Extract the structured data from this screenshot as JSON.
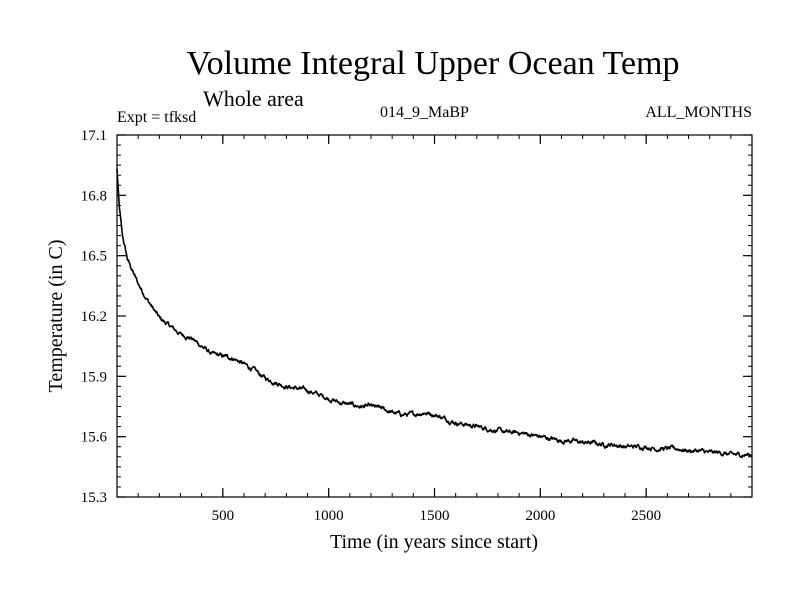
{
  "chart_data": {
    "type": "line",
    "title": "Volume Integral Upper Ocean Temp",
    "subtitle": "Whole area",
    "experiment_label": "Expt = tfksd",
    "run_label": "014_9_MaBP",
    "months_label": "ALL_MONTHS",
    "xlabel": "Time (in years since start)",
    "ylabel": "Temperature (in C)",
    "xlim": [
      0,
      3000
    ],
    "ylim": [
      15.3,
      17.1
    ],
    "xticks": [
      500,
      1000,
      1500,
      2000,
      2500
    ],
    "yticks": [
      15.3,
      15.6,
      15.9,
      16.2,
      16.5,
      16.8,
      17.1
    ],
    "ytick_labels": [
      "15.3",
      "15.6",
      "15.9",
      "16.2",
      "16.5",
      "16.8",
      "17.1"
    ],
    "grid": false,
    "series": [
      {
        "name": "Volume Integral Upper Ocean Temp",
        "color": "#000000",
        "x": [
          0,
          10,
          25,
          50,
          100,
          150,
          200,
          250,
          300,
          350,
          400,
          450,
          500,
          550,
          600,
          650,
          700,
          750,
          800,
          850,
          900,
          950,
          1000,
          1050,
          1100,
          1150,
          1200,
          1250,
          1300,
          1350,
          1400,
          1450,
          1500,
          1550,
          1600,
          1650,
          1700,
          1750,
          1800,
          1850,
          1900,
          1950,
          2000,
          2050,
          2100,
          2150,
          2200,
          2250,
          2300,
          2350,
          2400,
          2450,
          2500,
          2550,
          2600,
          2650,
          2700,
          2750,
          2800,
          2850,
          2900,
          2950,
          3000
        ],
        "y": [
          16.93,
          16.75,
          16.6,
          16.48,
          16.36,
          16.27,
          16.19,
          16.15,
          16.11,
          16.09,
          16.05,
          16.01,
          16.0,
          15.99,
          15.96,
          15.93,
          15.89,
          15.87,
          15.85,
          15.84,
          15.83,
          15.81,
          15.79,
          15.77,
          15.76,
          15.75,
          15.75,
          15.74,
          15.72,
          15.71,
          15.71,
          15.72,
          15.71,
          15.69,
          15.67,
          15.66,
          15.65,
          15.64,
          15.63,
          15.62,
          15.62,
          15.61,
          15.6,
          15.59,
          15.58,
          15.58,
          15.57,
          15.57,
          15.56,
          15.56,
          15.55,
          15.55,
          15.55,
          15.54,
          15.54,
          15.54,
          15.53,
          15.53,
          15.52,
          15.52,
          15.51,
          15.51,
          15.51
        ]
      }
    ]
  }
}
